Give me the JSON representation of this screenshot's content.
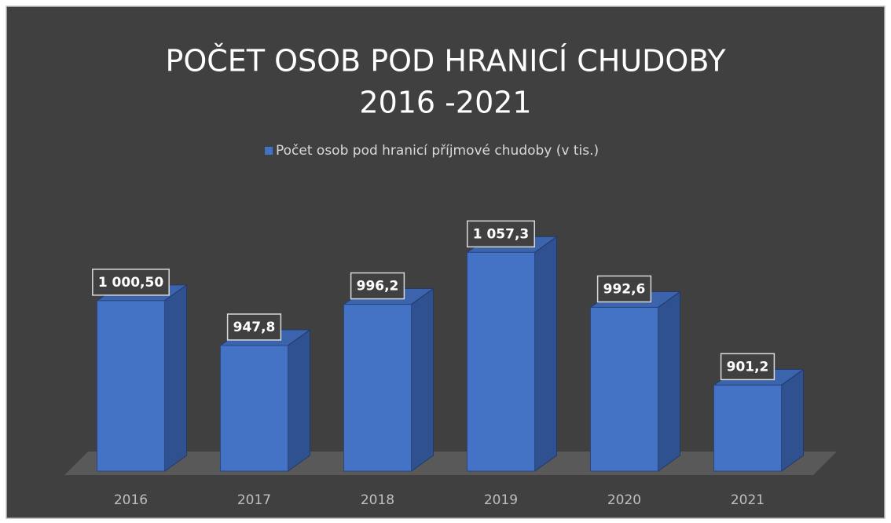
{
  "chart_data": {
    "type": "bar3d",
    "title": [
      "POČET OSOB POD HRANICÍ CHUDOBY",
      "2016 -2021"
    ],
    "categories": [
      "2016",
      "2017",
      "2018",
      "2019",
      "2020",
      "2021"
    ],
    "series": [
      {
        "name": "Počet osob pod hranicí příjmové chudoby (v tis.)",
        "color": "#4472c4",
        "values": [
          1000.5,
          947.8,
          996.2,
          1057.3,
          992.6,
          901.2
        ],
        "value_labels": [
          "1 000,50",
          "947,8",
          "996,2",
          "1 057,3",
          "992,6",
          "901,2"
        ]
      }
    ],
    "ylim": [
      800,
      1150
    ],
    "legend": "top"
  }
}
